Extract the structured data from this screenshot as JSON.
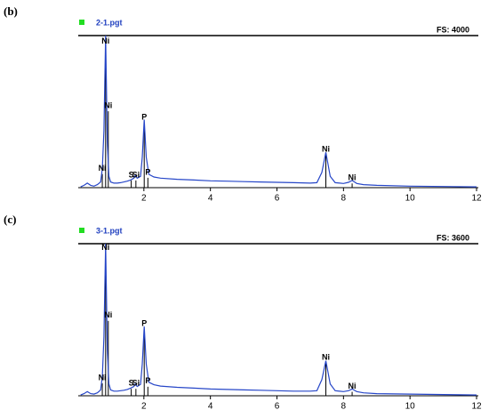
{
  "chart_data": [
    {
      "type": "line",
      "panel_label": "(b)",
      "file_name": "2-1.pgt",
      "fs_label": "FS: 4000",
      "x": [
        0.1,
        0.2,
        0.3,
        0.4,
        0.5,
        0.6,
        0.7,
        0.75,
        0.8,
        0.85,
        0.9,
        0.95,
        1.0,
        1.1,
        1.2,
        1.3,
        1.4,
        1.5,
        1.6,
        1.7,
        1.74,
        1.8,
        1.9,
        1.95,
        2.01,
        2.07,
        2.15,
        2.3,
        2.5,
        3,
        3.5,
        4,
        4.5,
        5,
        5.5,
        6,
        6.5,
        7,
        7.2,
        7.35,
        7.47,
        7.6,
        7.75,
        8,
        8.15,
        8.26,
        8.4,
        8.6,
        9,
        10,
        11,
        12
      ],
      "series": [
        {
          "color": "#2646c8",
          "values": [
            20,
            60,
            120,
            60,
            40,
            80,
            150,
            500,
            1500,
            4000,
            1200,
            300,
            150,
            120,
            120,
            130,
            150,
            170,
            200,
            250,
            320,
            250,
            300,
            800,
            1790,
            800,
            350,
            280,
            250,
            220,
            200,
            180,
            170,
            160,
            150,
            140,
            130,
            120,
            130,
            400,
            930,
            300,
            130,
            110,
            140,
            190,
            110,
            80,
            60,
            40,
            30,
            20
          ]
        }
      ],
      "annotations": [
        {
          "text": "Ni",
          "x": 0.85,
          "y": 3850
        },
        {
          "text": "Ni",
          "x": 0.93,
          "y": 2150
        },
        {
          "text": "Ni",
          "x": 0.75,
          "y": 500
        },
        {
          "text": "S",
          "x": 1.62,
          "y": 330
        },
        {
          "text": "Si",
          "x": 1.76,
          "y": 330
        },
        {
          "text": "P",
          "x": 2.01,
          "y": 1850
        },
        {
          "text": "P",
          "x": 2.12,
          "y": 400
        },
        {
          "text": "Ni",
          "x": 7.47,
          "y": 1000
        },
        {
          "text": "Ni",
          "x": 8.26,
          "y": 250
        }
      ],
      "xlim": [
        0,
        12
      ],
      "ylim": [
        0,
        4000
      ],
      "xticks": [
        2,
        4,
        6,
        8,
        10,
        12
      ]
    },
    {
      "type": "line",
      "panel_label": "(c)",
      "file_name": "3-1.pgt",
      "fs_label": "FS: 3600",
      "x": [
        0.1,
        0.2,
        0.3,
        0.4,
        0.5,
        0.6,
        0.7,
        0.75,
        0.8,
        0.85,
        0.9,
        0.95,
        1.0,
        1.1,
        1.2,
        1.3,
        1.4,
        1.5,
        1.6,
        1.7,
        1.74,
        1.8,
        1.9,
        1.95,
        2.01,
        2.07,
        2.15,
        2.3,
        2.5,
        3,
        3.5,
        4,
        4.5,
        5,
        5.5,
        6,
        6.5,
        7,
        7.2,
        7.35,
        7.47,
        7.6,
        7.75,
        8,
        8.15,
        8.26,
        8.4,
        8.6,
        9,
        10,
        11,
        12
      ],
      "series": [
        {
          "color": "#2646c8",
          "values": [
            20,
            50,
            100,
            50,
            40,
            70,
            140,
            450,
            1400,
            3600,
            1100,
            280,
            140,
            110,
            110,
            120,
            130,
            150,
            180,
            220,
            280,
            220,
            270,
            750,
            1640,
            750,
            320,
            260,
            230,
            200,
            180,
            160,
            150,
            140,
            130,
            120,
            110,
            110,
            120,
            380,
            830,
            280,
            120,
            100,
            120,
            160,
            100,
            70,
            50,
            40,
            30,
            20
          ]
        }
      ],
      "annotations": [
        {
          "text": "Ni",
          "x": 0.85,
          "y": 3500
        },
        {
          "text": "Ni",
          "x": 0.93,
          "y": 1900
        },
        {
          "text": "Ni",
          "x": 0.75,
          "y": 420
        },
        {
          "text": "S",
          "x": 1.62,
          "y": 290
        },
        {
          "text": "Si",
          "x": 1.76,
          "y": 290
        },
        {
          "text": "P",
          "x": 2.01,
          "y": 1700
        },
        {
          "text": "P",
          "x": 2.12,
          "y": 340
        },
        {
          "text": "Ni",
          "x": 7.47,
          "y": 900
        },
        {
          "text": "Ni",
          "x": 8.26,
          "y": 220
        }
      ],
      "xlim": [
        0,
        12
      ],
      "ylim": [
        0,
        3600
      ],
      "xticks": [
        2,
        4,
        6,
        8,
        10,
        12
      ]
    }
  ]
}
